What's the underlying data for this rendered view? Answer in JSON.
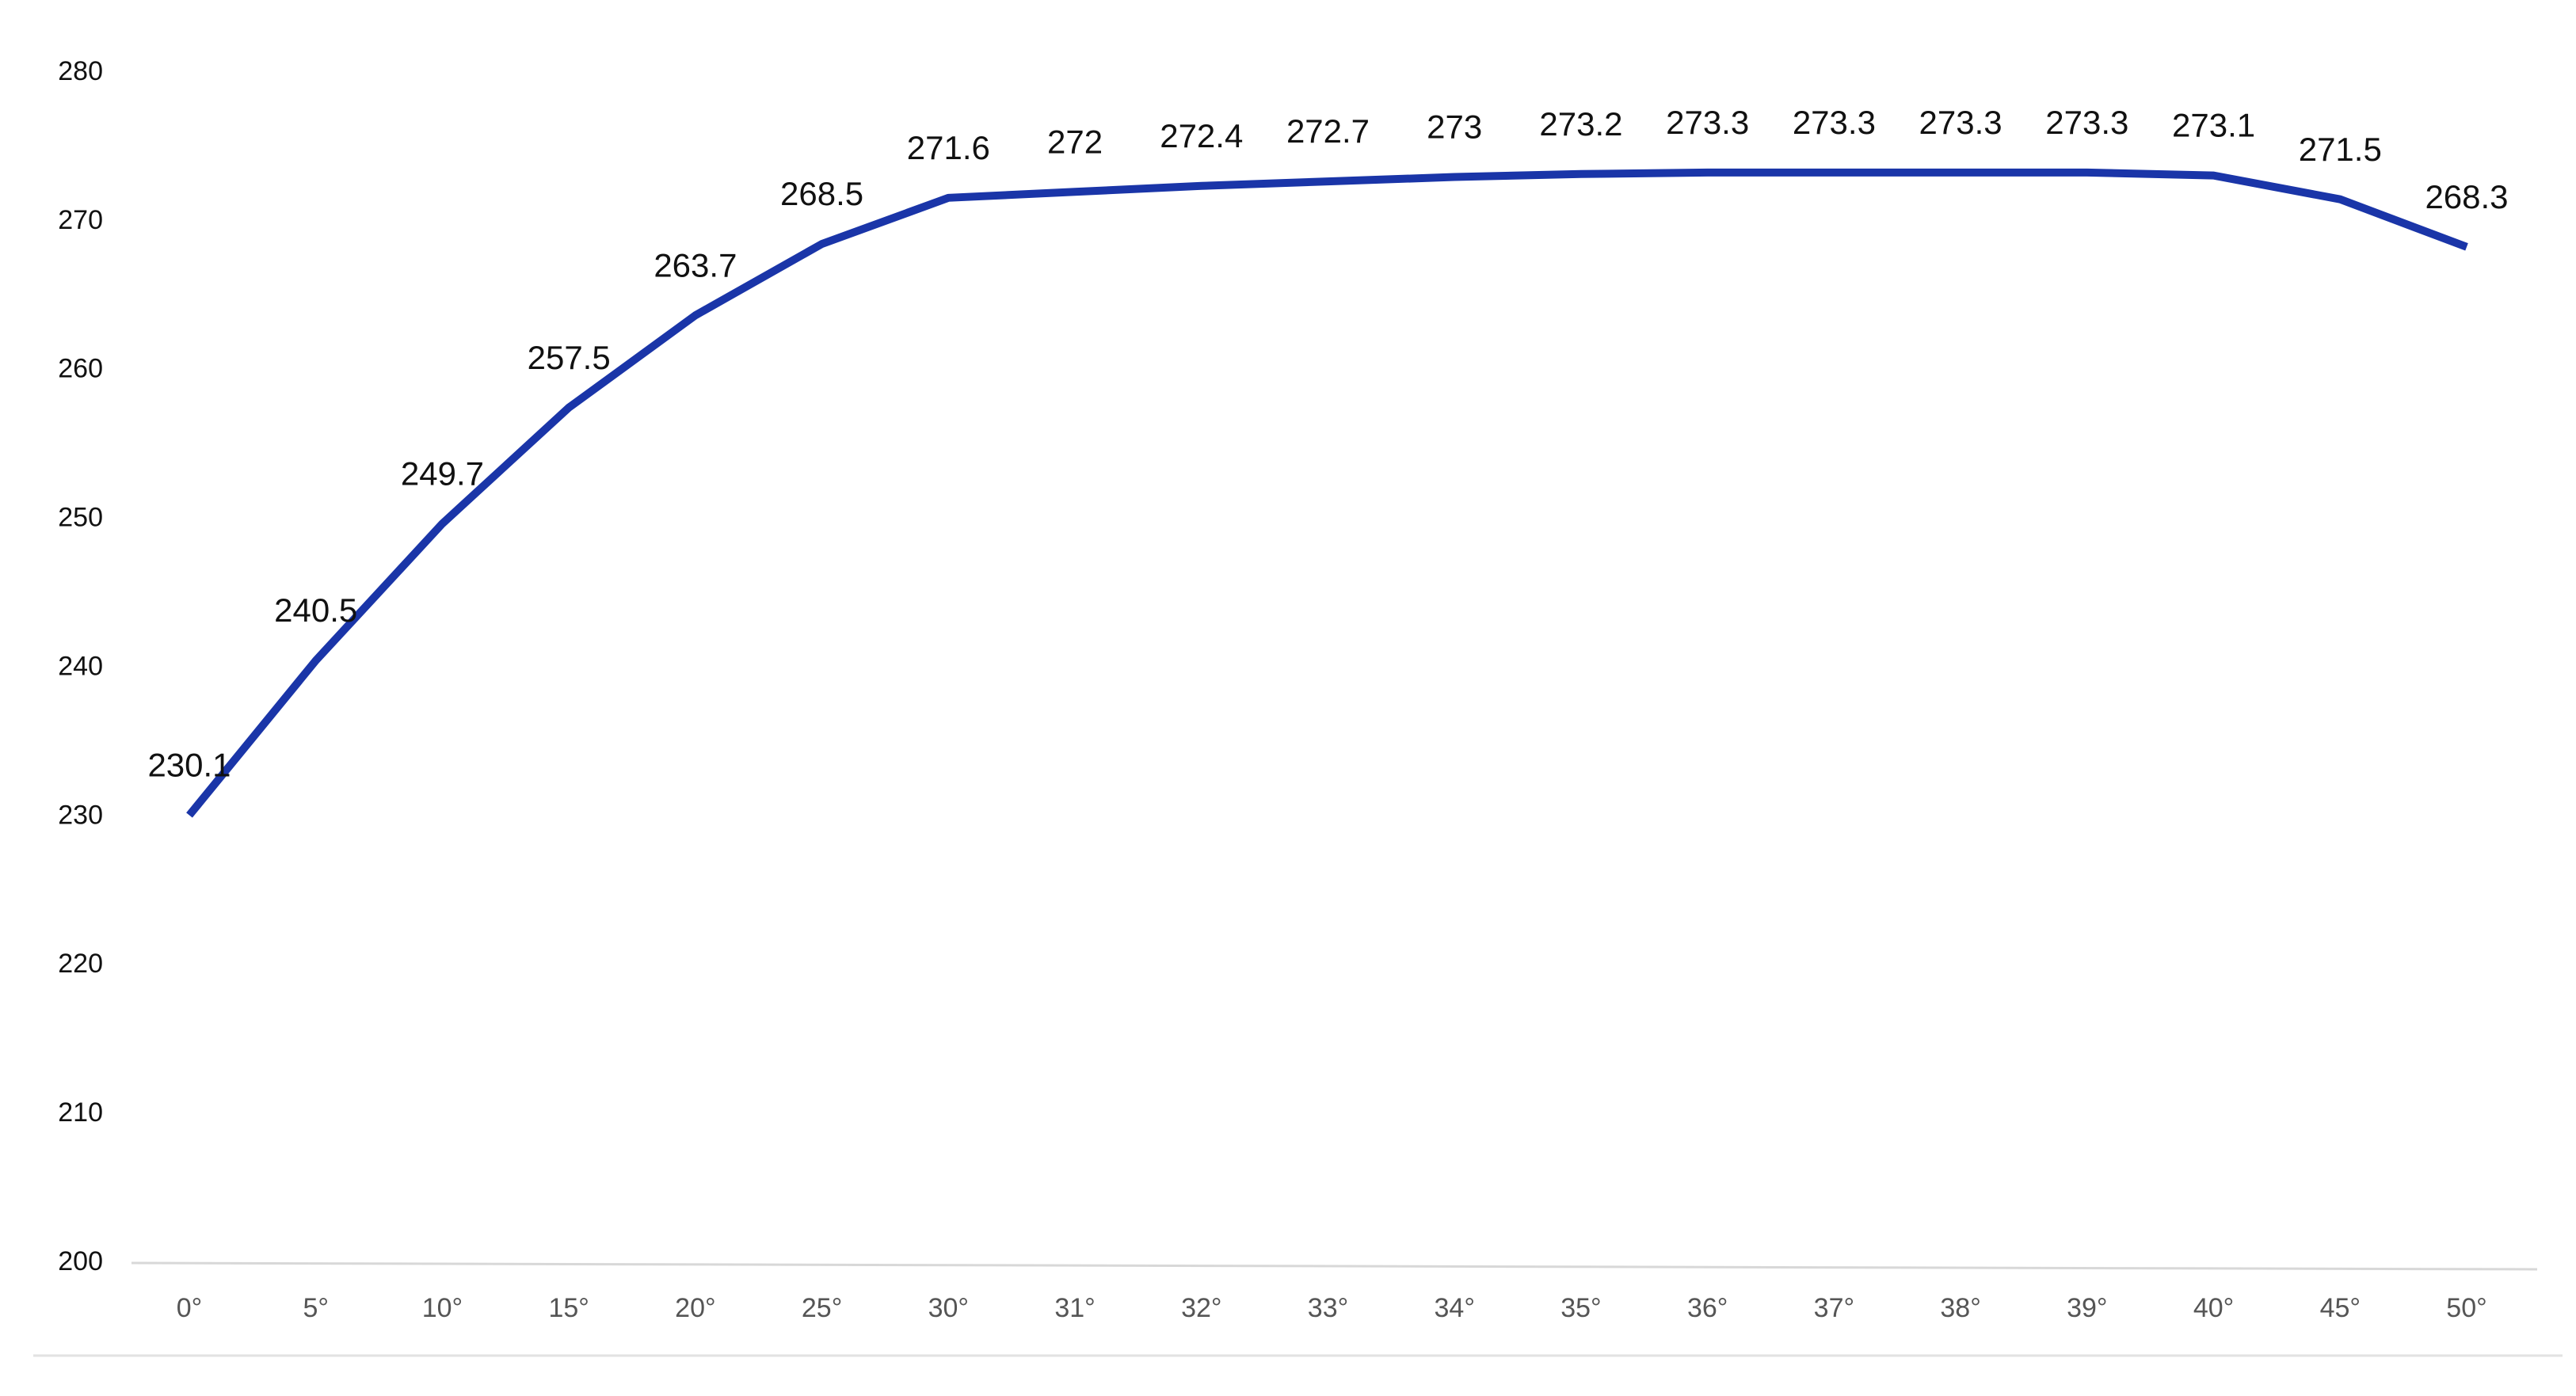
{
  "chart_data": {
    "type": "line",
    "categories": [
      "0°",
      "5°",
      "10°",
      "15°",
      "20°",
      "25°",
      "30°",
      "31°",
      "32°",
      "33°",
      "34°",
      "35°",
      "36°",
      "37°",
      "38°",
      "39°",
      "40°",
      "45°",
      "50°"
    ],
    "series": [
      {
        "name": null,
        "color": "#1a35a8",
        "values": [
          230.1,
          240.5,
          249.7,
          257.5,
          263.7,
          268.5,
          271.6,
          272,
          272.4,
          272.7,
          273,
          273.2,
          273.3,
          273.3,
          273.3,
          273.3,
          273.1,
          271.5,
          268.3
        ]
      }
    ],
    "ylim": [
      200,
      280
    ],
    "yticks": [
      200,
      210,
      220,
      230,
      240,
      250,
      260,
      270,
      280
    ],
    "grid": false
  }
}
